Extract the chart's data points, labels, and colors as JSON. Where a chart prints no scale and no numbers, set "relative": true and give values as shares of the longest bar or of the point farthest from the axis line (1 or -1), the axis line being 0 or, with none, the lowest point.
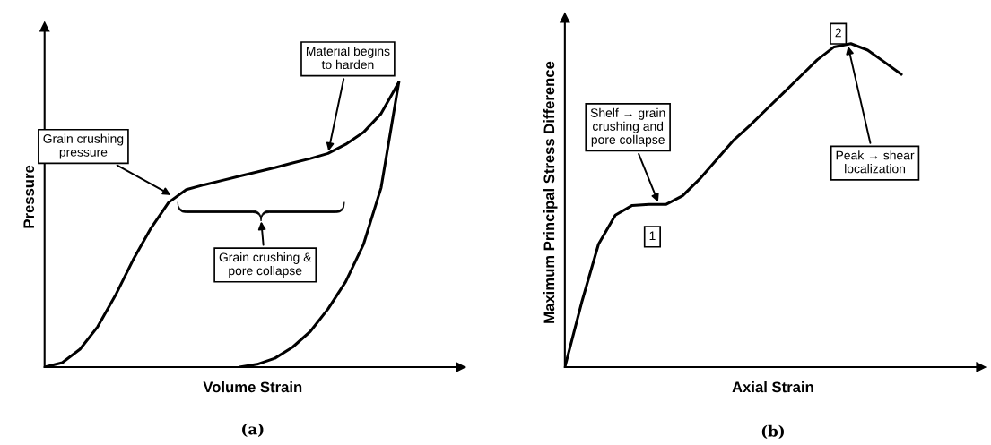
{
  "chart_data": [
    {
      "type": "line",
      "title": "(a)",
      "xlabel": "Volume Strain",
      "ylabel": "Pressure",
      "relative": true,
      "marker": "none",
      "line_style": "solid",
      "categories": [
        null,
        null,
        null,
        null,
        null,
        null,
        null,
        null,
        null,
        null,
        null,
        null,
        null,
        null,
        null,
        null,
        null,
        null,
        null,
        null,
        null
      ],
      "series": [
        {
          "color": "#000000",
          "values": [
            0,
            0.016,
            0.063,
            0.142,
            0.252,
            0.377,
            0.487,
            0.578,
            0.623,
            0.64,
            0.655,
            0.67,
            0.685,
            0.7,
            0.717,
            0.732,
            0.75,
            0.782,
            0.824,
            0.89,
            1
          ]
        },
        {
          "color": "#000000",
          "values": [
            null,
            null,
            null,
            null,
            null,
            null,
            null,
            null,
            null,
            null,
            null,
            0,
            0.01,
            0.031,
            0.07,
            0.125,
            0.204,
            0.3,
            0.43,
            0.63,
            1
          ]
        }
      ],
      "annotations": [
        "Material begins to harden",
        "Grain crushing pressure",
        "Grain crushing & pore collapse"
      ]
    },
    {
      "type": "line",
      "title": "(b)",
      "xlabel": "Axial Strain",
      "ylabel": "Maximum Principal Stress Difference",
      "relative": true,
      "marker": "none",
      "line_style": "solid",
      "categories": [
        null,
        null,
        null,
        null,
        null,
        null,
        null,
        null,
        null,
        null,
        null,
        null,
        null,
        null,
        null,
        null,
        null,
        null,
        null,
        null,
        null
      ],
      "series": [
        {
          "color": "#000000",
          "values": [
            0,
            0.2,
            0.38,
            0.47,
            0.5,
            0.503,
            0.503,
            0.53,
            0.581,
            0.64,
            0.7,
            0.747,
            0.798,
            0.848,
            0.899,
            0.95,
            0.99,
            1,
            0.98,
            0.943,
            0.905
          ]
        }
      ],
      "annotations": [
        "Shelf → grain crushing and pore collapse",
        "Peak → shear localization",
        "1",
        "2"
      ]
    }
  ]
}
